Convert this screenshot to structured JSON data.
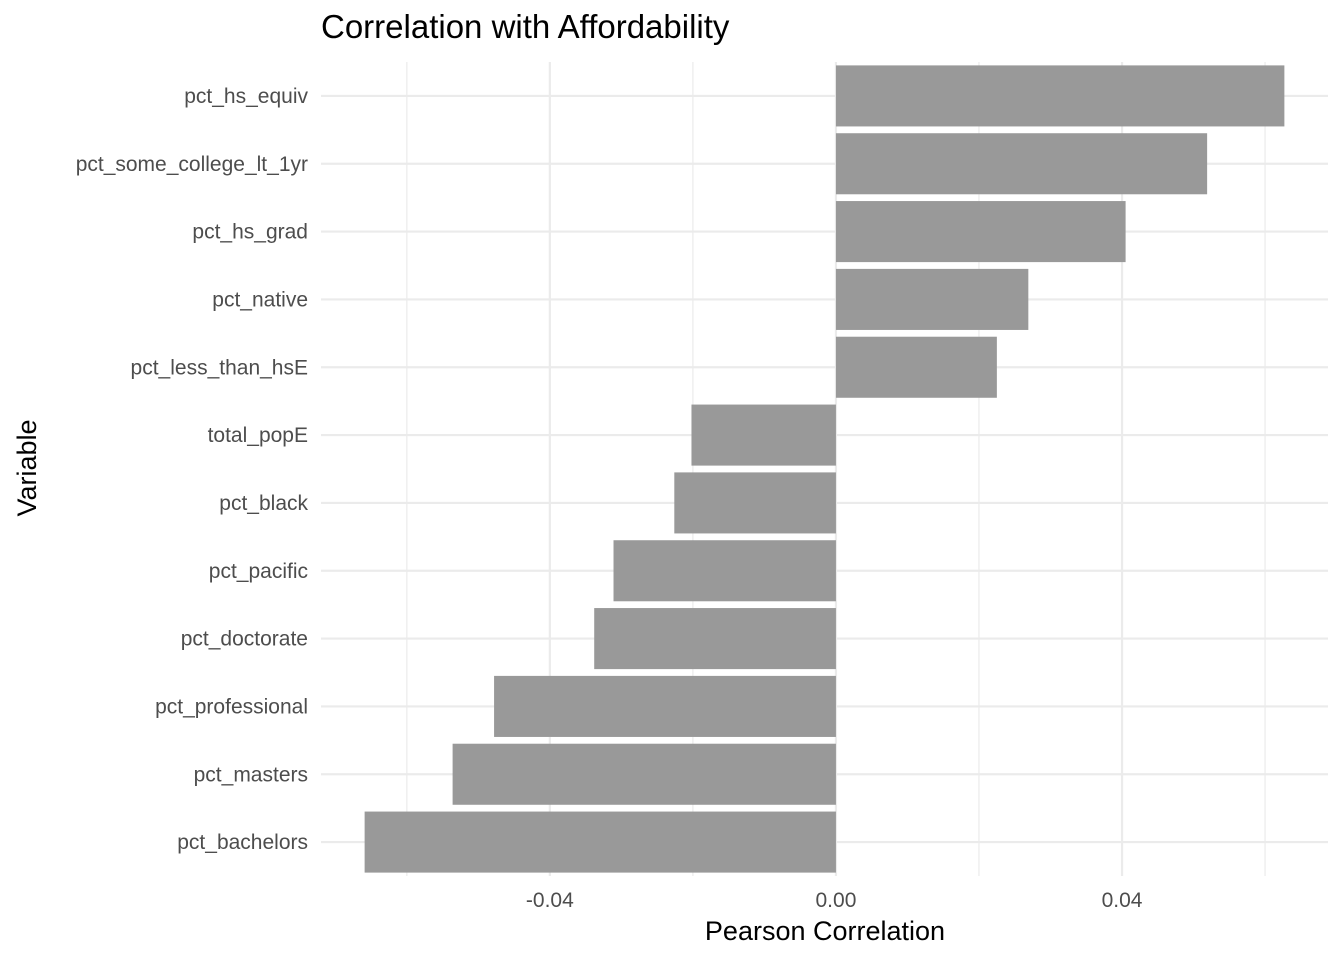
{
  "chart_data": {
    "type": "bar",
    "orientation": "horizontal",
    "title": "Correlation with Affordability",
    "xlabel": "Pearson Correlation",
    "ylabel": "Variable",
    "categories": [
      "pct_hs_equiv",
      "pct_some_college_lt_1yr",
      "pct_hs_grad",
      "pct_native",
      "pct_less_than_hsE",
      "total_popE",
      "pct_black",
      "pct_pacific",
      "pct_doctorate",
      "pct_professional",
      "pct_masters",
      "pct_bachelors"
    ],
    "values": [
      0.0627,
      0.0519,
      0.0405,
      0.0269,
      0.0225,
      -0.0202,
      -0.0226,
      -0.0311,
      -0.0338,
      -0.0478,
      -0.0536,
      -0.0659
    ],
    "xlim": [
      -0.072,
      0.0688
    ],
    "xticks": [
      -0.04,
      0.0,
      0.04
    ],
    "xtick_labels": [
      "-0.04",
      "0.00",
      "0.04"
    ],
    "bar_color": "#999999",
    "grid": true,
    "legend": false
  }
}
